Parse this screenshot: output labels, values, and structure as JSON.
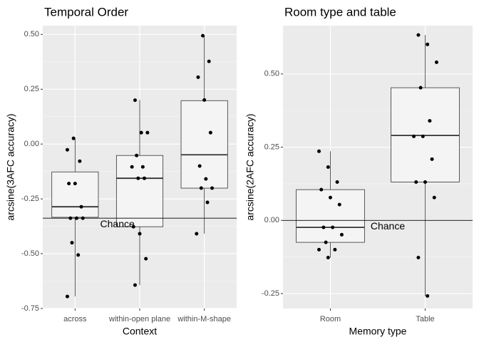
{
  "chart_data": [
    {
      "type": "box",
      "title": "Temporal Order",
      "x_label": "Context",
      "y_label": "arcsine(3AFC accuracy)",
      "categories": [
        "across",
        "within-open plane",
        "within-M-shape"
      ],
      "whisker_low": [
        -0.695,
        -0.643,
        -0.409
      ],
      "q1": [
        -0.334,
        -0.377,
        -0.201
      ],
      "median": [
        -0.286,
        -0.156,
        -0.049
      ],
      "q3": [
        -0.127,
        -0.052,
        0.198
      ],
      "whisker_high": [
        0.026,
        0.201,
        0.497
      ],
      "points": [
        [
          -0.026,
          0.026,
          -0.078,
          -0.18,
          -0.18,
          -0.286,
          -0.338,
          -0.338,
          -0.338,
          -0.45,
          -0.506,
          -0.695
        ],
        [
          0.2,
          0.052,
          0.052,
          -0.052,
          -0.104,
          -0.104,
          -0.156,
          -0.156,
          -0.377,
          -0.409,
          -0.523,
          -0.643
        ],
        [
          0.494,
          0.377,
          0.305,
          0.201,
          0.052,
          -0.1,
          -0.159,
          -0.201,
          -0.201,
          -0.266,
          -0.409
        ]
      ],
      "hline": {
        "value": -0.338,
        "label": "Chance"
      },
      "ylim": [
        -0.75,
        0.54
      ],
      "yticks": [
        -0.75,
        {
          "value": -0.5,
          "label": "-0.50"
        },
        -0.25,
        {
          "value": 0,
          "label": "0.00"
        },
        0.25,
        {
          "value": 0.5,
          "label": "0.50"
        }
      ],
      "grid": true
    },
    {
      "type": "box",
      "title": "Room type and table",
      "x_label": "Memory type",
      "y_label": "arcsine(2AFC accuracy)",
      "categories": [
        "Room",
        "Table"
      ],
      "whisker_low": [
        -0.127,
        -0.258
      ],
      "q1": [
        -0.075,
        0.131
      ],
      "median": [
        -0.024,
        0.29
      ],
      "q3": [
        0.105,
        0.453
      ],
      "whisker_high": [
        0.236,
        0.633
      ],
      "points": [
        [
          0.236,
          0.182,
          0.131,
          0.105,
          0.078,
          0.054,
          -0.024,
          -0.024,
          -0.049,
          -0.075,
          -0.1,
          -0.1,
          -0.127
        ],
        [
          0.633,
          0.601,
          0.54,
          0.453,
          0.34,
          0.287,
          0.287,
          0.209,
          0.131,
          0.131,
          0.078,
          -0.127,
          -0.258
        ]
      ],
      "hline": {
        "value": 0,
        "label": "Chance"
      },
      "ylim": [
        -0.301,
        0.665
      ],
      "yticks": [
        -0.25,
        {
          "value": 0,
          "label": "0.00"
        },
        0.25,
        {
          "value": 0.5,
          "label": "0.50"
        }
      ],
      "grid": true
    }
  ]
}
